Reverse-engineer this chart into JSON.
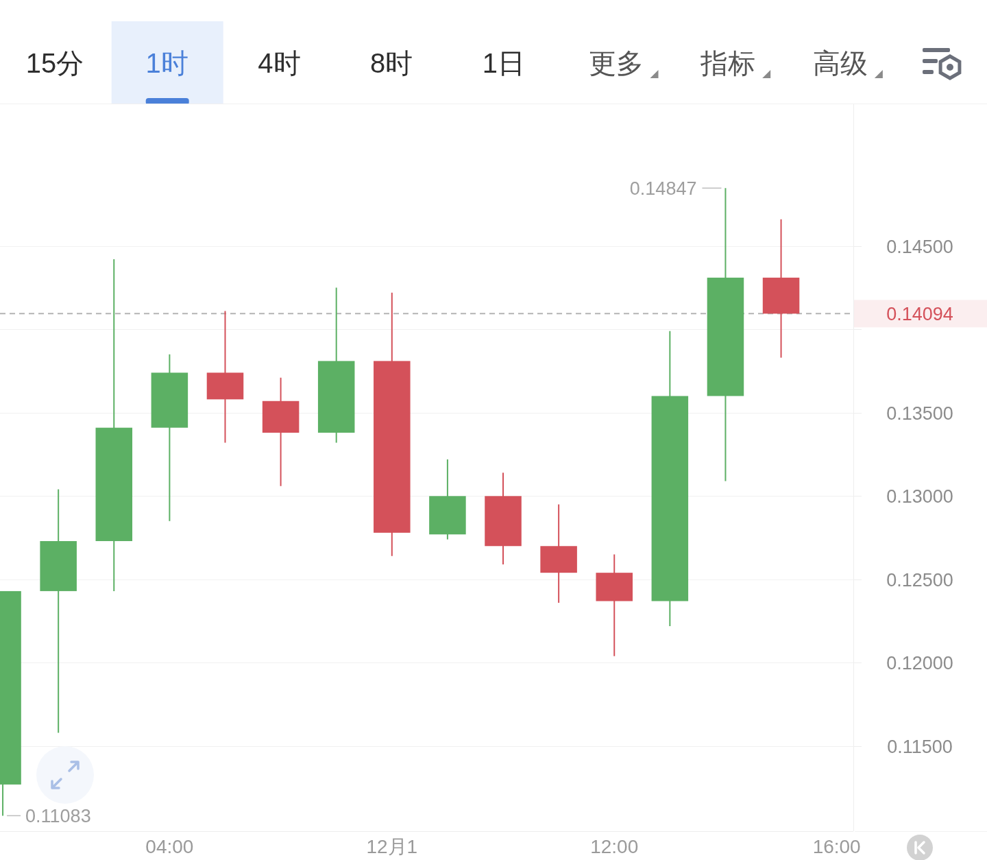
{
  "chart_data": [
    {
      "type": "other",
      "annotations": [
        "15分",
        "1时",
        "4时",
        "8时",
        "1日",
        "更多",
        "指标",
        "高级"
      ]
    },
    {
      "type": "candlestick",
      "x": [
        1,
        2,
        3,
        4,
        5,
        6,
        7,
        8,
        9,
        10,
        11,
        12,
        13,
        14,
        15
      ],
      "ohlc": [
        [
          0.1127,
          0.1243,
          0.11083,
          0.1243
        ],
        [
          0.1243,
          0.1304,
          0.1158,
          0.1273
        ],
        [
          0.1273,
          0.1442,
          0.1243,
          0.1341
        ],
        [
          0.1341,
          0.1385,
          0.1285,
          0.1374
        ],
        [
          0.1374,
          0.1411,
          0.1332,
          0.1358
        ],
        [
          0.1357,
          0.1371,
          0.1306,
          0.1338
        ],
        [
          0.1338,
          0.1425,
          0.1332,
          0.1381
        ],
        [
          0.1381,
          0.1422,
          0.1264,
          0.1278
        ],
        [
          0.1277,
          0.1322,
          0.1274,
          0.13
        ],
        [
          0.13,
          0.1314,
          0.1259,
          0.127
        ],
        [
          0.127,
          0.1295,
          0.1236,
          0.1254
        ],
        [
          0.1254,
          0.1265,
          0.1204,
          0.1237
        ],
        [
          0.1237,
          0.1399,
          0.1222,
          0.136
        ],
        [
          0.136,
          0.14847,
          0.1309,
          0.1431
        ],
        [
          0.1431,
          0.1466,
          0.1383,
          0.14094
        ]
      ],
      "colors": [
        "#5cb064",
        "#5cb064",
        "#5cb064",
        "#5cb064",
        "#d4515a",
        "#d4515a",
        "#5cb064",
        "#d4515a",
        "#5cb064",
        "#d4515a",
        "#d4515a",
        "#d4515a",
        "#5cb064",
        "#5cb064",
        "#d4515a"
      ],
      "xlim": [
        0.95,
        16.3
      ],
      "ylim": [
        0.1099,
        0.1535
      ],
      "xticks": [
        {
          "value": 4,
          "label": "04:00"
        },
        {
          "value": 8,
          "label": "12月1"
        },
        {
          "value": 12,
          "label": "12:00"
        },
        {
          "value": 16,
          "label": "16:00"
        }
      ],
      "yticks": [
        {
          "value": 0.115,
          "label": "0.11500"
        },
        {
          "value": 0.12,
          "label": "0.12000"
        },
        {
          "value": 0.125,
          "label": "0.12500"
        },
        {
          "value": 0.13,
          "label": "0.13000"
        },
        {
          "value": 0.135,
          "label": "0.13500"
        },
        {
          "value": 0.14,
          "label": null
        },
        {
          "value": 0.145,
          "label": "0.14500"
        }
      ],
      "grid": "y",
      "ref_lines": [
        {
          "axis": "y",
          "value": 0.14094,
          "label": "0.14094",
          "color": "#b4b4b4",
          "line_style": "dashed"
        }
      ],
      "annotations": [
        {
          "text": "0.14847",
          "x": 14,
          "y": 0.14847
        },
        {
          "text": "0.11083",
          "x": 1,
          "y": 0.11083
        }
      ]
    }
  ]
}
